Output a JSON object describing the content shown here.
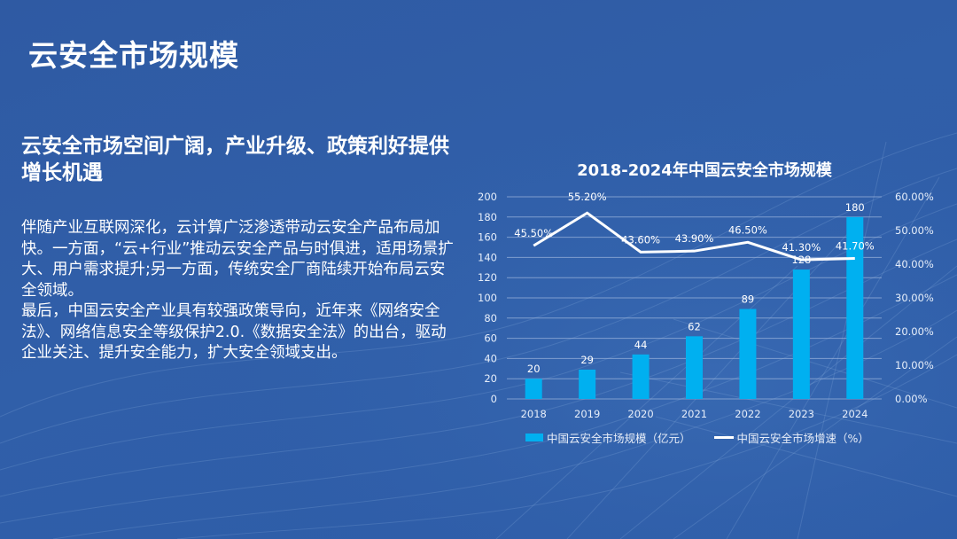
{
  "slide": {
    "title": "云安全市场规模",
    "headline": "云安全市场空间广阔，产业升级、政策利好提供增长机遇",
    "paragraphs": [
      "伴随产业互联网深化，云计算广泛渗透带动云安全产品布局加快。一方面，“云+行业”推动云安全产品与时俱进，适用场景扩大、用户需求提升;另一方面，传统安全厂商陆续开始布局云安全领域。",
      "最后，中国云安全产业具有较强政策导向，近年来《网络安全法》、网络信息安全等级保护2.0.《数据安全法》的出台，驱动企业关注、提升安全能力，扩大安全领域支出。"
    ]
  },
  "colors": {
    "background": "#2f5ba5",
    "bar": "#00b0f0",
    "line": "#ffffff",
    "gridline": "#9fb8de"
  },
  "chart_data": {
    "type": "bar+line",
    "title": "2018-2024年中国云安全市场规模",
    "categories": [
      "2018",
      "2019",
      "2020",
      "2021",
      "2022",
      "2023",
      "2024"
    ],
    "series": [
      {
        "name": "中国云安全市场规模（亿元）",
        "type": "bar",
        "axis": "left",
        "values": [
          20,
          29,
          44,
          62,
          89,
          128,
          180
        ],
        "labels": [
          "20",
          "29",
          "44",
          "62",
          "89",
          "128",
          "180"
        ]
      },
      {
        "name": "中国云安全市场增速（%）",
        "type": "line",
        "axis": "right",
        "values": [
          45.5,
          55.2,
          43.6,
          43.9,
          46.5,
          41.3,
          41.7
        ],
        "labels": [
          "45.50%",
          "55.20%",
          "43.60%",
          "43.90%",
          "46.50%",
          "41.30%",
          "41.70%"
        ]
      }
    ],
    "left_axis": {
      "ylim": [
        0,
        200
      ],
      "ticks": [
        "0",
        "20",
        "40",
        "60",
        "80",
        "100",
        "120",
        "140",
        "160",
        "180",
        "200"
      ]
    },
    "right_axis": {
      "ylim": [
        0,
        60
      ],
      "ticks": [
        "0.00%",
        "10.00%",
        "20.00%",
        "30.00%",
        "40.00%",
        "50.00%",
        "60.00%"
      ]
    },
    "grid": true,
    "legend_position": "bottom",
    "legend": [
      "中国云安全市场规模（亿元）",
      "中国云安全市场增速（%）"
    ]
  }
}
